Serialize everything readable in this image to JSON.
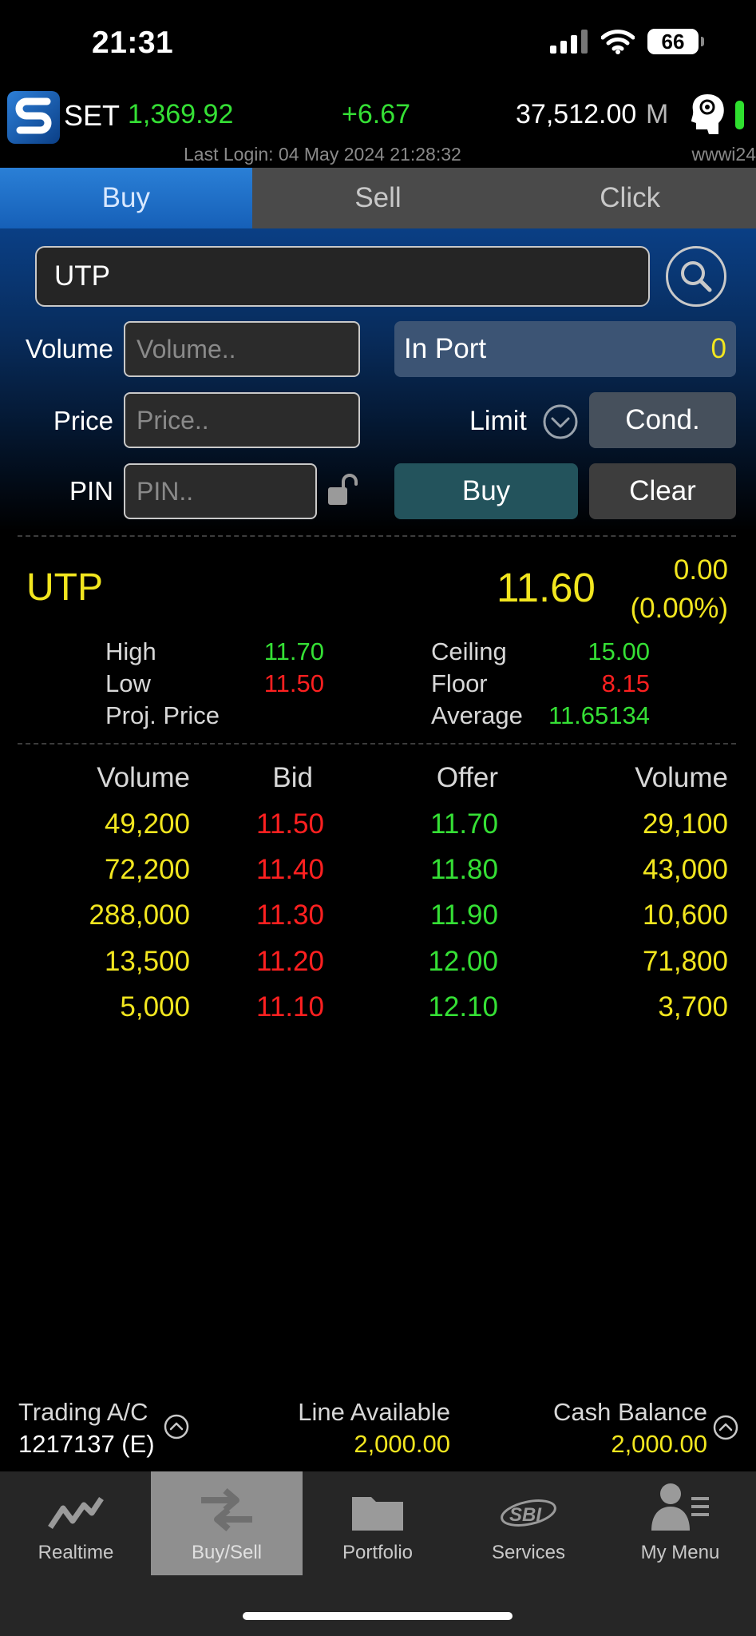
{
  "status_bar": {
    "time": "21:31",
    "battery": "66"
  },
  "market": {
    "name": "SET",
    "index": "1,369.92",
    "change": "+6.67",
    "value": "37,512.00",
    "value_unit": "M",
    "last_login": "Last Login: 04 May 2024 21:28:32",
    "server": "wwwi24"
  },
  "tabs": [
    {
      "label": "Buy",
      "active": true
    },
    {
      "label": "Sell",
      "active": false
    },
    {
      "label": "Click",
      "active": false
    }
  ],
  "order_form": {
    "symbol": "UTP",
    "volume_label": "Volume",
    "volume_placeholder": "Volume..",
    "price_label": "Price",
    "price_placeholder": "Price..",
    "pin_label": "PIN",
    "pin_placeholder": "PIN..",
    "in_port_label": "In Port",
    "in_port_value": "0",
    "order_type": "Limit",
    "cond_label": "Cond.",
    "buy_label": "Buy",
    "clear_label": "Clear"
  },
  "quote": {
    "symbol": "UTP",
    "last": "11.60",
    "change": "0.00",
    "change_pct": "(0.00%)",
    "high_label": "High",
    "high": "11.70",
    "low_label": "Low",
    "low": "11.50",
    "proj_label": "Proj. Price",
    "proj": "",
    "ceiling_label": "Ceiling",
    "ceiling": "15.00",
    "floor_label": "Floor",
    "floor": "8.15",
    "average_label": "Average",
    "average": "11.65134"
  },
  "order_book": {
    "headers": [
      "Volume",
      "Bid",
      "Offer",
      "Volume"
    ],
    "rows": [
      {
        "bid_volume": "49,200",
        "bid": "11.50",
        "offer": "11.70",
        "offer_volume": "29,100"
      },
      {
        "bid_volume": "72,200",
        "bid": "11.40",
        "offer": "11.80",
        "offer_volume": "43,000"
      },
      {
        "bid_volume": "288,000",
        "bid": "11.30",
        "offer": "11.90",
        "offer_volume": "10,600"
      },
      {
        "bid_volume": "13,500",
        "bid": "11.20",
        "offer": "12.00",
        "offer_volume": "71,800"
      },
      {
        "bid_volume": "5,000",
        "bid": "11.10",
        "offer": "12.10",
        "offer_volume": "3,700"
      }
    ]
  },
  "account": {
    "trading_label": "Trading A/C",
    "trading_value": "1217137 (E)",
    "line_label": "Line Available",
    "line_value": "2,000.00",
    "cash_label": "Cash Balance",
    "cash_value": "2,000.00"
  },
  "bottom_nav": [
    {
      "label": "Realtime",
      "icon": "chart-line-icon",
      "active": false
    },
    {
      "label": "Buy/Sell",
      "icon": "arrows-exchange-icon",
      "active": true
    },
    {
      "label": "Portfolio",
      "icon": "folder-icon",
      "active": false
    },
    {
      "label": "Services",
      "icon": "sbi-logo-icon",
      "active": false
    },
    {
      "label": "My Menu",
      "icon": "user-menu-icon",
      "active": false
    }
  ]
}
